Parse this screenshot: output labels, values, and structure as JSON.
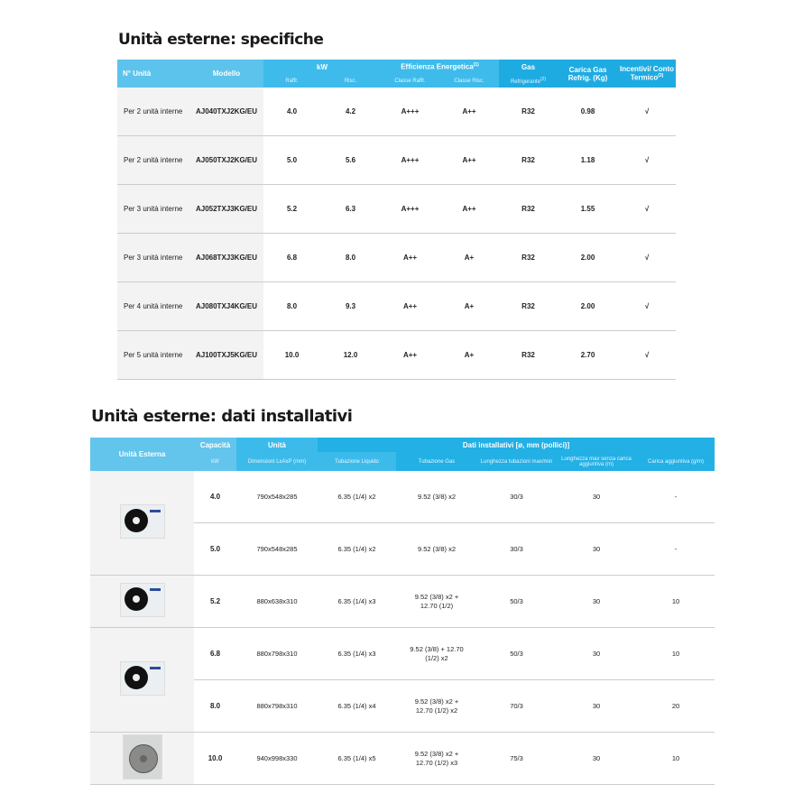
{
  "specs": {
    "title": "Unità esterne: specifiche",
    "headers": {
      "units": "N° Unità",
      "model": "Modello",
      "kw": "kW",
      "cool": "Raffr.",
      "heat": "Risc.",
      "efficiency": "Efficienza Energetica",
      "efficiency_note": "(1)",
      "class_cool": "Classe Raffr.",
      "class_heat": "Classe Risc.",
      "gas": "Gas",
      "refrigerant": "Refrigerante",
      "refrigerant_note": "(2)",
      "charge": "Carica Gas Refrig. (Kg)",
      "incentives": "Incentivi/ Conto Termico",
      "incentives_note": "(3)"
    },
    "rows": [
      {
        "units": "Per 2 unità interne",
        "model": "AJ040TXJ2KG/EU",
        "cool": "4.0",
        "heat": "4.2",
        "class_cool": "A+++",
        "class_heat": "A++",
        "gas": "R32",
        "charge": "0.98",
        "incentive": "√"
      },
      {
        "units": "Per 2 unità interne",
        "model": "AJ050TXJ2KG/EU",
        "cool": "5.0",
        "heat": "5.6",
        "class_cool": "A+++",
        "class_heat": "A++",
        "gas": "R32",
        "charge": "1.18",
        "incentive": "√"
      },
      {
        "units": "Per 3 unità interne",
        "model": "AJ052TXJ3KG/EU",
        "cool": "5.2",
        "heat": "6.3",
        "class_cool": "A+++",
        "class_heat": "A++",
        "gas": "R32",
        "charge": "1.55",
        "incentive": "√"
      },
      {
        "units": "Per 3 unità interne",
        "model": "AJ068TXJ3KG/EU",
        "cool": "6.8",
        "heat": "8.0",
        "class_cool": "A++",
        "class_heat": "A+",
        "gas": "R32",
        "charge": "2.00",
        "incentive": "√"
      },
      {
        "units": "Per 4 unità interne",
        "model": "AJ080TXJ4KG/EU",
        "cool": "8.0",
        "heat": "9.3",
        "class_cool": "A++",
        "class_heat": "A+",
        "gas": "R32",
        "charge": "2.00",
        "incentive": "√"
      },
      {
        "units": "Per 5 unità interne",
        "model": "AJ100TXJ5KG/EU",
        "cool": "10.0",
        "heat": "12.0",
        "class_cool": "A++",
        "class_heat": "A+",
        "gas": "R32",
        "charge": "2.70",
        "incentive": "√"
      }
    ]
  },
  "install": {
    "title": "Unità esterne: dati installativi",
    "headers": {
      "unit": "Unità Esterna",
      "capacity": "Capacità",
      "kw": "kW",
      "unit_col": "Unità",
      "dimensions": "Dimensioni LxAxP (mm)",
      "install_data": "Dati installativi [ø, mm (pollici)]",
      "liquid": "Tubazione Liquido",
      "gas": "Tubazione Gas",
      "pipe_length": "Lunghezza tubazioni max/min",
      "max_length": "Lunghezza max senza carica aggiuntiva (m)",
      "extra_charge": "Carica aggiuntiva (g/m)"
    },
    "rows": [
      {
        "kw": "4.0",
        "dim": "790x548x285",
        "liquid": "6.35 (1/4) x2",
        "gas": "9.52 (3/8) x2",
        "length": "30/3",
        "max": "30",
        "extra": "-"
      },
      {
        "kw": "5.0",
        "dim": "790x548x285",
        "liquid": "6.35 (1/4) x2",
        "gas": "9.52 (3/8) x2",
        "length": "30/3",
        "max": "30",
        "extra": "-"
      },
      {
        "kw": "5.2",
        "dim": "880x638x310",
        "liquid": "6.35 (1/4) x3",
        "gas": "9.52 (3/8) x2 + 12.70 (1/2)",
        "length": "50/3",
        "max": "30",
        "extra": "10"
      },
      {
        "kw": "6.8",
        "dim": "880x798x310",
        "liquid": "6.35 (1/4) x3",
        "gas": "9.52 (3/8) + 12.70 (1/2) x2",
        "length": "50/3",
        "max": "30",
        "extra": "10"
      },
      {
        "kw": "8.0",
        "dim": "880x798x310",
        "liquid": "6.35 (1/4) x4",
        "gas": "9.52 (3/8) x2 + 12.70 (1/2) x2",
        "length": "70/3",
        "max": "30",
        "extra": "20"
      },
      {
        "kw": "10.0",
        "dim": "940x998x330",
        "liquid": "6.35 (1/4) x5",
        "gas": "9.52 (3/8) x2 + 12.70 (1/2) x3",
        "length": "75/3",
        "max": "30",
        "extra": "10"
      }
    ]
  }
}
